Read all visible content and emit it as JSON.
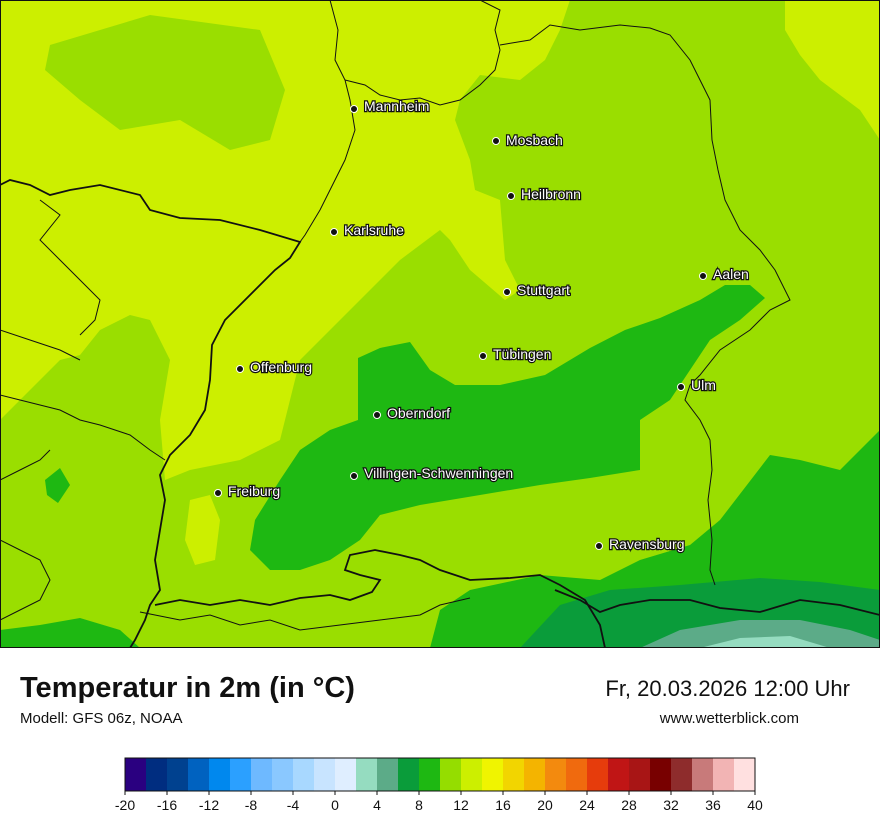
{
  "title": "Temperatur in 2m (in °C)",
  "model": "Modell: GFS 06z, NOAA",
  "datetime": "Fr, 20.03.2026 12:00 Uhr",
  "website": "www.wetterblick.com",
  "cities": [
    {
      "name": "Mannheim"
    },
    {
      "name": "Mosbach"
    },
    {
      "name": "Heilbronn"
    },
    {
      "name": "Karlsruhe"
    },
    {
      "name": "Aalen"
    },
    {
      "name": "Stuttgart"
    },
    {
      "name": "Offenburg"
    },
    {
      "name": "Tübingen"
    },
    {
      "name": "Ulm"
    },
    {
      "name": "Oberndorf"
    },
    {
      "name": "Villingen-Schwenningen"
    },
    {
      "name": "Freiburg"
    },
    {
      "name": "Ravensburg"
    }
  ],
  "legend": {
    "min": -20,
    "step": 2,
    "colors": [
      "#2a0080",
      "#002d80",
      "#00418f",
      "#0062c0",
      "#0088ee",
      "#2ba0ff",
      "#6eb9ff",
      "#8ac8ff",
      "#a8d8ff",
      "#c8e4ff",
      "#dfeeff",
      "#95dcc0",
      "#5cab88",
      "#0a9c3a",
      "#1eb812",
      "#95dd00",
      "#ccef00",
      "#f0f400",
      "#f2d500",
      "#f4b400",
      "#f38a0e",
      "#f06a0e",
      "#e63c0c",
      "#c01515",
      "#a81515",
      "#780000",
      "#8e2c2c",
      "#c87a7a",
      "#f2b4b4",
      "#ffe0e0"
    ],
    "ticks": [
      "-20",
      "-16",
      "-12",
      "-8",
      "-4",
      "0",
      "4",
      "8",
      "12",
      "16",
      "20",
      "24",
      "28",
      "32",
      "36",
      "40"
    ]
  }
}
